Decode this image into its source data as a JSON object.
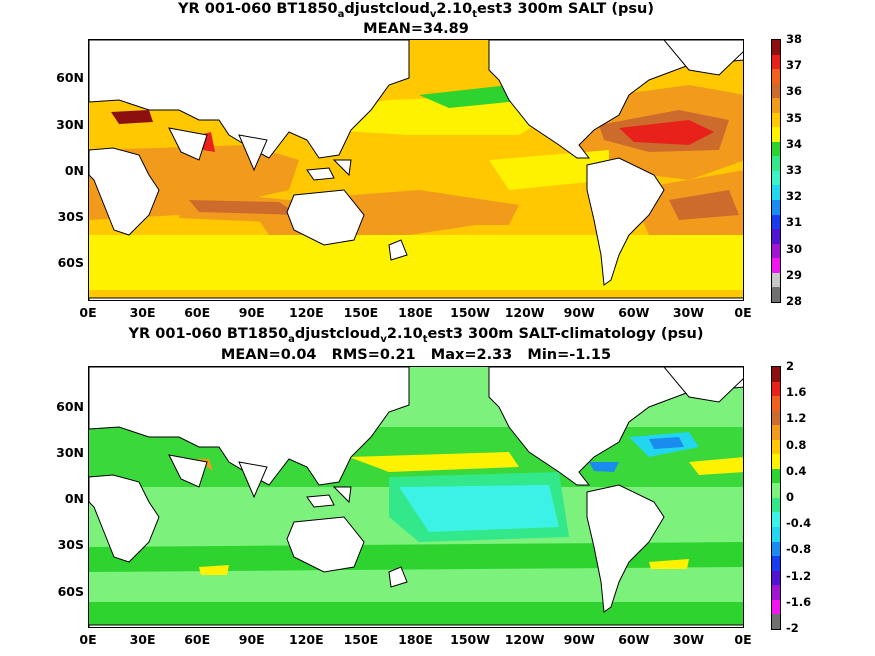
{
  "panels": [
    {
      "title_parts": [
        "YR 001-060 BT1850",
        "a",
        "djustcloud",
        "v",
        "2.10",
        "t",
        "est3 300m SALT (psu)"
      ],
      "subtitle": "MEAN=34.89",
      "lat_labels": [
        "60N",
        "30N",
        "0N",
        "30S",
        "60S"
      ],
      "lon_labels": [
        "0E",
        "30E",
        "60E",
        "90E",
        "120E",
        "150E",
        "180E",
        "150W",
        "120W",
        "90W",
        "60W",
        "30W",
        "0E"
      ],
      "colorbar_labels": [
        "38",
        "37",
        "36",
        "35",
        "34",
        "33",
        "32",
        "31",
        "30",
        "29",
        "28"
      ],
      "colorbar_colors": [
        "#8c1010",
        "#e8221b",
        "#f2601e",
        "#cc6b2c",
        "#f29a1c",
        "#ffc800",
        "#fff200",
        "#2fd32f",
        "#33e88a",
        "#3cf2c8",
        "#22d6f0",
        "#1a8cf0",
        "#1a3cf0",
        "#5014d2",
        "#a014d2",
        "#f014f0",
        "#c8c8c8",
        "#707070"
      ]
    },
    {
      "title_parts": [
        "YR 001-060 BT1850",
        "a",
        "djustcloud",
        "v",
        "2.10",
        "t",
        "est3 300m SALT-climatology (psu)"
      ],
      "subtitle": "MEAN=0.04   RMS=0.21   Max=2.33   Min=-1.15",
      "lat_labels": [
        "60N",
        "30N",
        "0N",
        "30S",
        "60S"
      ],
      "lon_labels": [
        "0E",
        "30E",
        "60E",
        "90E",
        "120E",
        "150E",
        "180E",
        "150W",
        "120W",
        "90W",
        "60W",
        "30W",
        "0E"
      ],
      "colorbar_labels": [
        "2",
        "1.6",
        "1.2",
        "0.8",
        "0.4",
        "0",
        "-0.4",
        "-0.8",
        "-1.2",
        "-1.6",
        "-2"
      ],
      "colorbar_colors": [
        "#8c1010",
        "#e8221b",
        "#f2601e",
        "#cc6b2c",
        "#f29a1c",
        "#ffc800",
        "#fff200",
        "#2fd32f",
        "#7cf27c",
        "#33e88a",
        "#3cf2e6",
        "#22d6f0",
        "#1a8cf0",
        "#1a3cf0",
        "#5014d2",
        "#a014d2",
        "#f014f0",
        "#707070"
      ]
    }
  ],
  "colors": {
    "land": "#ffffff",
    "coast": "#000000",
    "ocean_top": "#ffc800",
    "ocean_bottom": "#7cf27c"
  }
}
